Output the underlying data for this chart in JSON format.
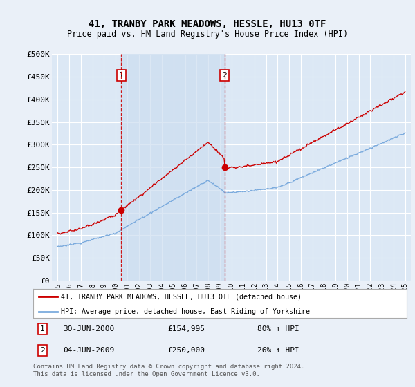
{
  "title": "41, TRANBY PARK MEADOWS, HESSLE, HU13 0TF",
  "subtitle": "Price paid vs. HM Land Registry's House Price Index (HPI)",
  "ylim": [
    0,
    500000
  ],
  "yticks": [
    0,
    50000,
    100000,
    150000,
    200000,
    250000,
    300000,
    350000,
    400000,
    450000,
    500000
  ],
  "ytick_labels": [
    "£0",
    "£50K",
    "£100K",
    "£150K",
    "£200K",
    "£250K",
    "£300K",
    "£350K",
    "£400K",
    "£450K",
    "£500K"
  ],
  "background_color": "#eaf0f8",
  "plot_background": "#dce8f5",
  "grid_color": "#ffffff",
  "red_line_color": "#cc0000",
  "blue_line_color": "#7aaadd",
  "shade_color": "#ccddf0",
  "vline_color": "#cc0000",
  "sale1_year": 2000.5,
  "sale1_price": 154995,
  "sale2_year": 2009.42,
  "sale2_price": 250000,
  "legend1": "41, TRANBY PARK MEADOWS, HESSLE, HU13 0TF (detached house)",
  "legend2": "HPI: Average price, detached house, East Riding of Yorkshire",
  "footnote": "Contains HM Land Registry data © Crown copyright and database right 2024.\nThis data is licensed under the Open Government Licence v3.0.",
  "table_row1": [
    "1",
    "30-JUN-2000",
    "£154,995",
    "80% ↑ HPI"
  ],
  "table_row2": [
    "2",
    "04-JUN-2009",
    "£250,000",
    "26% ↑ HPI"
  ],
  "xlim_left": 1994.5,
  "xlim_right": 2025.5
}
